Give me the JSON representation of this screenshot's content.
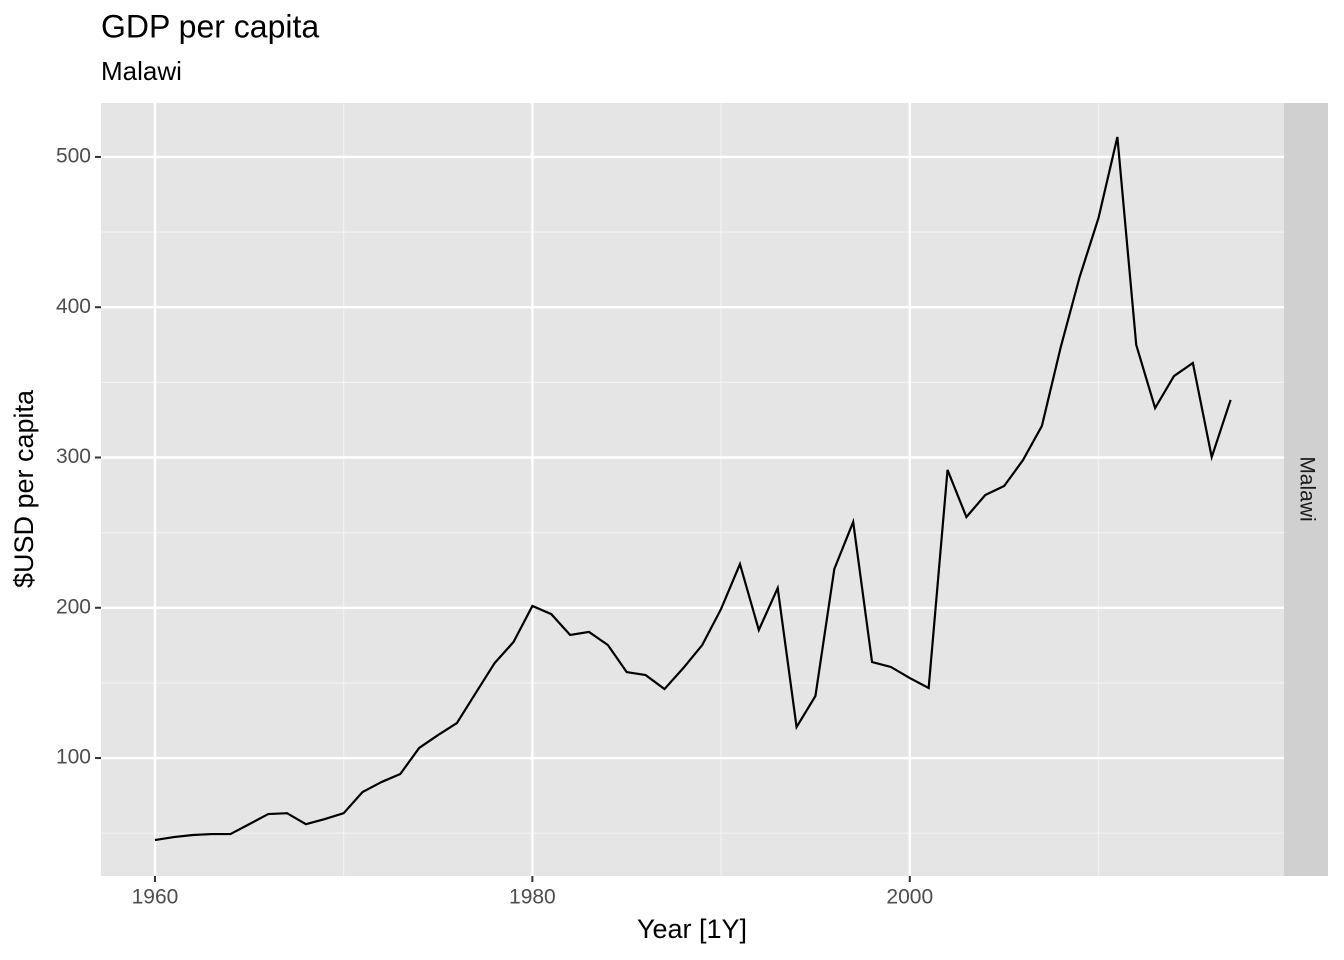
{
  "chart_data": {
    "type": "line",
    "title": "GDP per capita",
    "subtitle": "Malawi",
    "x_label": "Year [1Y]",
    "y_label": "$USD per capita",
    "facet_label": "Malawi",
    "x": [
      1960,
      1961,
      1962,
      1963,
      1964,
      1965,
      1966,
      1967,
      1968,
      1969,
      1970,
      1971,
      1972,
      1973,
      1974,
      1975,
      1976,
      1977,
      1978,
      1979,
      1980,
      1981,
      1982,
      1983,
      1984,
      1985,
      1986,
      1987,
      1988,
      1989,
      1990,
      1991,
      1992,
      1993,
      1994,
      1995,
      1996,
      1997,
      1998,
      1999,
      2000,
      2001,
      2002,
      2003,
      2004,
      2005,
      2006,
      2007,
      2008,
      2009,
      2010,
      2011,
      2012,
      2013,
      2014,
      2015,
      2016,
      2017
    ],
    "series": [
      {
        "name": "Malawi",
        "color": "#000000",
        "values": [
          45.4,
          47.4,
          48.8,
          49.4,
          49.4,
          56,
          62.7,
          63.3,
          56,
          59.4,
          63.3,
          77.4,
          84,
          89.4,
          106.7,
          115.3,
          123.3,
          143.3,
          163.2,
          177.2,
          201.2,
          195.8,
          181.9,
          183.9,
          175.2,
          157.2,
          155.2,
          145.9,
          159.9,
          175.2,
          199.2,
          229.1,
          185.2,
          213.1,
          120.6,
          141.3,
          225.8,
          257.1,
          163.9,
          160.6,
          153.2,
          146.6,
          291.7,
          260.4,
          275,
          281,
          298.3,
          321,
          373.5,
          420.1,
          459.4,
          513.3,
          374.9,
          332.9,
          354.2,
          362.9,
          300.3,
          338.3
        ]
      }
    ],
    "xlim": [
      1957.14,
      2019.83
    ],
    "xticks": [
      1960,
      1980,
      2000
    ],
    "minor_xticks": [
      1970,
      1990,
      2010
    ],
    "ylim": [
      21.5,
      535.9
    ],
    "yticks": [
      100,
      200,
      300,
      400,
      500
    ],
    "minor_yticks": [
      50,
      150,
      250,
      350,
      450
    ],
    "grid": true
  }
}
